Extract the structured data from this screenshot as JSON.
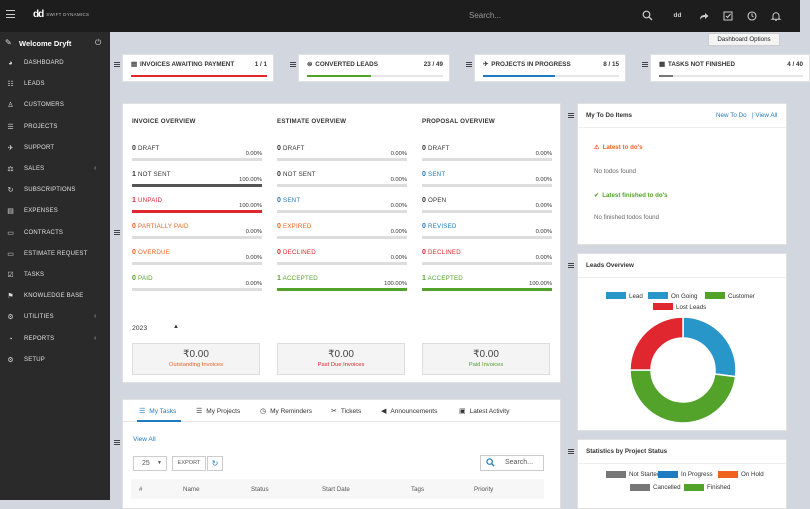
{
  "topbar": {
    "logo_text": "SWIFT DYNAMICS",
    "search_placeholder": "Search...",
    "user_initials": "dd",
    "tooltip": "Dashboard Options"
  },
  "sidebar": {
    "welcome": "Welcome Dryft",
    "items": [
      {
        "label": "DASHBOARD",
        "icon": "dashboard-icon"
      },
      {
        "label": "LEADS",
        "icon": "leads-icon"
      },
      {
        "label": "CUSTOMERS",
        "icon": "customers-icon"
      },
      {
        "label": "PROJECTS",
        "icon": "projects-icon"
      },
      {
        "label": "SUPPORT",
        "icon": "support-icon"
      },
      {
        "label": "SALES",
        "icon": "sales-icon",
        "caret": "‹"
      },
      {
        "label": "SUBSCRIPTIONS",
        "icon": "subscriptions-icon"
      },
      {
        "label": "EXPENSES",
        "icon": "expenses-icon"
      },
      {
        "label": "CONTRACTS",
        "icon": "contracts-icon"
      },
      {
        "label": "ESTIMATE REQUEST",
        "icon": "estimate-request-icon"
      },
      {
        "label": "TASKS",
        "icon": "tasks-icon"
      },
      {
        "label": "KNOWLEDGE BASE",
        "icon": "knowledge-base-icon"
      },
      {
        "label": "UTILITIES",
        "icon": "utilities-icon",
        "caret": "‹"
      },
      {
        "label": "REPORTS",
        "icon": "reports-icon",
        "caret": "‹"
      },
      {
        "label": "SETUP",
        "icon": "setup-icon"
      }
    ]
  },
  "stat_cards": [
    {
      "label": "INVOICES AWAITING PAYMENT",
      "count": "1 / 1",
      "progress": 1.0,
      "color": "#e0262e"
    },
    {
      "label": "CONVERTED LEADS",
      "count": "23 / 49",
      "progress": 0.47,
      "color": "#53a22a"
    },
    {
      "label": "PROJECTS IN PROGRESS",
      "count": "8 / 15",
      "progress": 0.53,
      "color": "#1f7bbf"
    },
    {
      "label": "TASKS NOT FINISHED",
      "count": "4 / 40",
      "progress": 0.1,
      "color": "#777777"
    }
  ],
  "overview": {
    "columns": [
      {
        "title": "INVOICE OVERVIEW",
        "rows": [
          {
            "value": "0",
            "label": "DRAFT",
            "pct": "0.00%",
            "color": "#333333",
            "fill": 0
          },
          {
            "value": "1",
            "label": "NOT SENT",
            "pct": "100.00%",
            "color": "#333333",
            "fill": 1.0,
            "bar_color": "#555555"
          },
          {
            "value": "1",
            "label": "UNPAID",
            "pct": "100.00%",
            "color": "#e0262e",
            "fill": 1.0,
            "bar_color": "#e0262e"
          },
          {
            "value": "0",
            "label": "PARTIALLY PAID",
            "pct": "0.00%",
            "color": "#f0621f",
            "fill": 0
          },
          {
            "value": "0",
            "label": "OVERDUE",
            "pct": "0.00%",
            "color": "#f0621f",
            "fill": 0
          },
          {
            "value": "0",
            "label": "PAID",
            "pct": "0.00%",
            "color": "#53a22a",
            "fill": 0
          }
        ]
      },
      {
        "title": "ESTIMATE OVERVIEW",
        "rows": [
          {
            "value": "0",
            "label": "DRAFT",
            "pct": "0.00%",
            "color": "#333333",
            "fill": 0
          },
          {
            "value": "0",
            "label": "NOT SENT",
            "pct": "0.00%",
            "color": "#333333",
            "fill": 0
          },
          {
            "value": "0",
            "label": "SENT",
            "pct": "0.00%",
            "color": "#1f7bbf",
            "fill": 0
          },
          {
            "value": "0",
            "label": "EXPIRED",
            "pct": "0.00%",
            "color": "#f0621f",
            "fill": 0
          },
          {
            "value": "0",
            "label": "DECLINED",
            "pct": "0.00%",
            "color": "#e0262e",
            "fill": 0
          },
          {
            "value": "1",
            "label": "ACCEPTED",
            "pct": "100.00%",
            "color": "#53a22a",
            "fill": 1.0,
            "bar_color": "#53a22a"
          }
        ]
      },
      {
        "title": "PROPOSAL OVERVIEW",
        "rows": [
          {
            "value": "0",
            "label": "DRAFT",
            "pct": "0.00%",
            "color": "#333333",
            "fill": 0
          },
          {
            "value": "0",
            "label": "SENT",
            "pct": "0.00%",
            "color": "#1f7bbf",
            "fill": 0
          },
          {
            "value": "0",
            "label": "OPEN",
            "pct": "0.00%",
            "color": "#333333",
            "fill": 0
          },
          {
            "value": "0",
            "label": "REVISED",
            "pct": "0.00%",
            "color": "#1f7bbf",
            "fill": 0
          },
          {
            "value": "0",
            "label": "DECLINED",
            "pct": "0.00%",
            "color": "#e0262e",
            "fill": 0
          },
          {
            "value": "1",
            "label": "ACCEPTED",
            "pct": "100.00%",
            "color": "#53a22a",
            "fill": 1.0,
            "bar_color": "#53a22a"
          }
        ]
      }
    ],
    "year": "2023",
    "summary": [
      {
        "amount": "₹0.00",
        "caption": "Outstanding Invoices",
        "color": "#f0621f"
      },
      {
        "amount": "₹0.00",
        "caption": "Past Due Invoices",
        "color": "#e0262e"
      },
      {
        "amount": "₹0.00",
        "caption": "Paid Invoices",
        "color": "#53a22a"
      }
    ]
  },
  "tasks_panel": {
    "tabs": [
      "My Tasks",
      "My Projects",
      "My Reminders",
      "Tickets",
      "Announcements",
      "Latest Activity"
    ],
    "view_all": "View All",
    "page_size": "25",
    "export": "EXPORT",
    "search_placeholder": "Search...",
    "columns": [
      "#",
      "Name",
      "Status",
      "Start Date",
      "Tags",
      "Priority"
    ]
  },
  "todo": {
    "title": "My To Do Items",
    "new_link": "New To Do",
    "view_all_link": "| View All",
    "latest_title": "Latest to do's",
    "latest_empty": "No todos found",
    "finished_title": "Latest finished to do's",
    "finished_empty": "No finished todos found"
  },
  "leads_overview": {
    "title": "Leads Overview"
  },
  "project_status": {
    "title": "Statistics by Project Status",
    "legend": [
      {
        "name": "Not Started",
        "color": "#777777"
      },
      {
        "name": "In Progress",
        "color": "#1f7bbf"
      },
      {
        "name": "On Hold",
        "color": "#f0621f"
      },
      {
        "name": "Cancelled",
        "color": "#777777"
      },
      {
        "name": "Finished",
        "color": "#53a22a"
      }
    ]
  },
  "chart_data": {
    "type": "pie",
    "categories": [
      "Lead",
      "On Going",
      "Customer",
      "Lost Leads"
    ],
    "values": [
      27,
      0,
      48,
      25
    ],
    "colors": [
      "#2896c8",
      "#2896c8",
      "#53a22a",
      "#e0262e"
    ],
    "legend": "top"
  }
}
